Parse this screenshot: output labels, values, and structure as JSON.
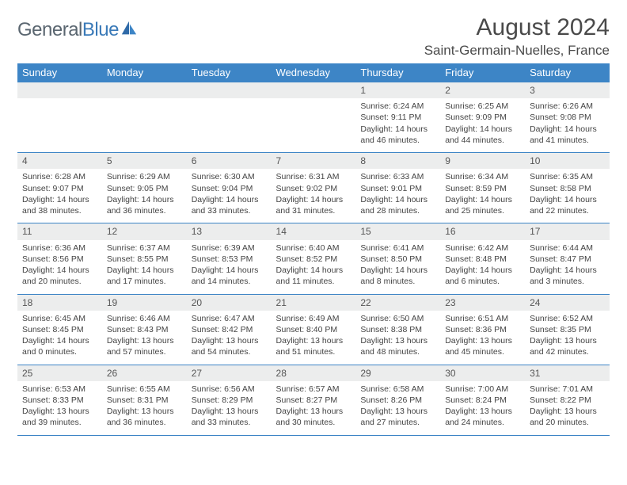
{
  "brand": {
    "part1": "General",
    "part2": "Blue"
  },
  "title": "August 2024",
  "subtitle": "Saint-Germain-Nuelles, France",
  "colors": {
    "header_bg": "#3d85c6",
    "header_text": "#ffffff",
    "daynum_bg": "#eceded",
    "border": "#3d85c6",
    "body_text": "#444444",
    "page_bg": "#ffffff",
    "logo_gray": "#5a6670",
    "logo_blue": "#3a7ab8"
  },
  "typography": {
    "title_fontsize": 30,
    "subtitle_fontsize": 17,
    "th_fontsize": 13,
    "cell_fontsize": 10.5,
    "daynum_fontsize": 12
  },
  "day_headers": [
    "Sunday",
    "Monday",
    "Tuesday",
    "Wednesday",
    "Thursday",
    "Friday",
    "Saturday"
  ],
  "weeks": [
    [
      {
        "n": "",
        "sr": "",
        "ss": "",
        "dl": ""
      },
      {
        "n": "",
        "sr": "",
        "ss": "",
        "dl": ""
      },
      {
        "n": "",
        "sr": "",
        "ss": "",
        "dl": ""
      },
      {
        "n": "",
        "sr": "",
        "ss": "",
        "dl": ""
      },
      {
        "n": "1",
        "sr": "Sunrise: 6:24 AM",
        "ss": "Sunset: 9:11 PM",
        "dl": "Daylight: 14 hours and 46 minutes."
      },
      {
        "n": "2",
        "sr": "Sunrise: 6:25 AM",
        "ss": "Sunset: 9:09 PM",
        "dl": "Daylight: 14 hours and 44 minutes."
      },
      {
        "n": "3",
        "sr": "Sunrise: 6:26 AM",
        "ss": "Sunset: 9:08 PM",
        "dl": "Daylight: 14 hours and 41 minutes."
      }
    ],
    [
      {
        "n": "4",
        "sr": "Sunrise: 6:28 AM",
        "ss": "Sunset: 9:07 PM",
        "dl": "Daylight: 14 hours and 38 minutes."
      },
      {
        "n": "5",
        "sr": "Sunrise: 6:29 AM",
        "ss": "Sunset: 9:05 PM",
        "dl": "Daylight: 14 hours and 36 minutes."
      },
      {
        "n": "6",
        "sr": "Sunrise: 6:30 AM",
        "ss": "Sunset: 9:04 PM",
        "dl": "Daylight: 14 hours and 33 minutes."
      },
      {
        "n": "7",
        "sr": "Sunrise: 6:31 AM",
        "ss": "Sunset: 9:02 PM",
        "dl": "Daylight: 14 hours and 31 minutes."
      },
      {
        "n": "8",
        "sr": "Sunrise: 6:33 AM",
        "ss": "Sunset: 9:01 PM",
        "dl": "Daylight: 14 hours and 28 minutes."
      },
      {
        "n": "9",
        "sr": "Sunrise: 6:34 AM",
        "ss": "Sunset: 8:59 PM",
        "dl": "Daylight: 14 hours and 25 minutes."
      },
      {
        "n": "10",
        "sr": "Sunrise: 6:35 AM",
        "ss": "Sunset: 8:58 PM",
        "dl": "Daylight: 14 hours and 22 minutes."
      }
    ],
    [
      {
        "n": "11",
        "sr": "Sunrise: 6:36 AM",
        "ss": "Sunset: 8:56 PM",
        "dl": "Daylight: 14 hours and 20 minutes."
      },
      {
        "n": "12",
        "sr": "Sunrise: 6:37 AM",
        "ss": "Sunset: 8:55 PM",
        "dl": "Daylight: 14 hours and 17 minutes."
      },
      {
        "n": "13",
        "sr": "Sunrise: 6:39 AM",
        "ss": "Sunset: 8:53 PM",
        "dl": "Daylight: 14 hours and 14 minutes."
      },
      {
        "n": "14",
        "sr": "Sunrise: 6:40 AM",
        "ss": "Sunset: 8:52 PM",
        "dl": "Daylight: 14 hours and 11 minutes."
      },
      {
        "n": "15",
        "sr": "Sunrise: 6:41 AM",
        "ss": "Sunset: 8:50 PM",
        "dl": "Daylight: 14 hours and 8 minutes."
      },
      {
        "n": "16",
        "sr": "Sunrise: 6:42 AM",
        "ss": "Sunset: 8:48 PM",
        "dl": "Daylight: 14 hours and 6 minutes."
      },
      {
        "n": "17",
        "sr": "Sunrise: 6:44 AM",
        "ss": "Sunset: 8:47 PM",
        "dl": "Daylight: 14 hours and 3 minutes."
      }
    ],
    [
      {
        "n": "18",
        "sr": "Sunrise: 6:45 AM",
        "ss": "Sunset: 8:45 PM",
        "dl": "Daylight: 14 hours and 0 minutes."
      },
      {
        "n": "19",
        "sr": "Sunrise: 6:46 AM",
        "ss": "Sunset: 8:43 PM",
        "dl": "Daylight: 13 hours and 57 minutes."
      },
      {
        "n": "20",
        "sr": "Sunrise: 6:47 AM",
        "ss": "Sunset: 8:42 PM",
        "dl": "Daylight: 13 hours and 54 minutes."
      },
      {
        "n": "21",
        "sr": "Sunrise: 6:49 AM",
        "ss": "Sunset: 8:40 PM",
        "dl": "Daylight: 13 hours and 51 minutes."
      },
      {
        "n": "22",
        "sr": "Sunrise: 6:50 AM",
        "ss": "Sunset: 8:38 PM",
        "dl": "Daylight: 13 hours and 48 minutes."
      },
      {
        "n": "23",
        "sr": "Sunrise: 6:51 AM",
        "ss": "Sunset: 8:36 PM",
        "dl": "Daylight: 13 hours and 45 minutes."
      },
      {
        "n": "24",
        "sr": "Sunrise: 6:52 AM",
        "ss": "Sunset: 8:35 PM",
        "dl": "Daylight: 13 hours and 42 minutes."
      }
    ],
    [
      {
        "n": "25",
        "sr": "Sunrise: 6:53 AM",
        "ss": "Sunset: 8:33 PM",
        "dl": "Daylight: 13 hours and 39 minutes."
      },
      {
        "n": "26",
        "sr": "Sunrise: 6:55 AM",
        "ss": "Sunset: 8:31 PM",
        "dl": "Daylight: 13 hours and 36 minutes."
      },
      {
        "n": "27",
        "sr": "Sunrise: 6:56 AM",
        "ss": "Sunset: 8:29 PM",
        "dl": "Daylight: 13 hours and 33 minutes."
      },
      {
        "n": "28",
        "sr": "Sunrise: 6:57 AM",
        "ss": "Sunset: 8:27 PM",
        "dl": "Daylight: 13 hours and 30 minutes."
      },
      {
        "n": "29",
        "sr": "Sunrise: 6:58 AM",
        "ss": "Sunset: 8:26 PM",
        "dl": "Daylight: 13 hours and 27 minutes."
      },
      {
        "n": "30",
        "sr": "Sunrise: 7:00 AM",
        "ss": "Sunset: 8:24 PM",
        "dl": "Daylight: 13 hours and 24 minutes."
      },
      {
        "n": "31",
        "sr": "Sunrise: 7:01 AM",
        "ss": "Sunset: 8:22 PM",
        "dl": "Daylight: 13 hours and 20 minutes."
      }
    ]
  ]
}
